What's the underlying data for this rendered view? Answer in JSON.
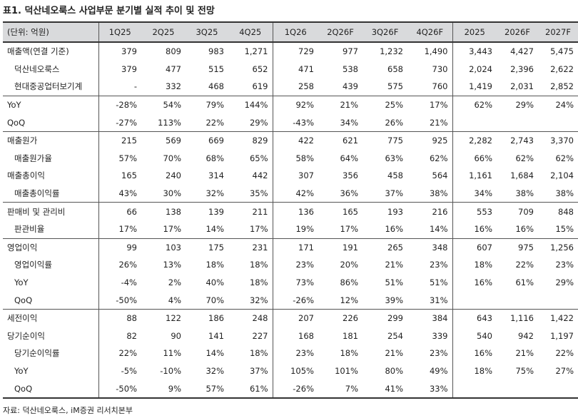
{
  "title": "표1. 덕산네오룩스 사업부문 분기별 실적 추이 및 전망",
  "source": "자료: 덕산네오룩스, iM증권 리서치본부",
  "header": [
    "(단위: 억원)",
    "1Q25",
    "2Q25",
    "3Q25",
    "4Q25",
    "1Q26",
    "2Q26F",
    "3Q26F",
    "4Q26F",
    "2025",
    "2026F",
    "2027F"
  ],
  "rows": [
    {
      "label": "매출액(연결 기준)",
      "values": [
        "379",
        "809",
        "983",
        "1,271",
        "729",
        "977",
        "1,232",
        "1,490",
        "3,443",
        "4,427",
        "5,475"
      ]
    },
    {
      "label": "덕산네오룩스",
      "values": [
        "379",
        "477",
        "515",
        "652",
        "471",
        "538",
        "658",
        "730",
        "2,024",
        "2,396",
        "2,622"
      ]
    },
    {
      "label": "현대중공업터보기계",
      "values": [
        "-",
        "332",
        "468",
        "619",
        "258",
        "439",
        "575",
        "760",
        "1,419",
        "2,031",
        "2,852"
      ]
    },
    {
      "label": "YoY",
      "values": [
        "-28%",
        "54%",
        "79%",
        "144%",
        "92%",
        "21%",
        "25%",
        "17%",
        "62%",
        "29%",
        "24%"
      ]
    },
    {
      "label": "QoQ",
      "values": [
        "-27%",
        "113%",
        "22%",
        "29%",
        "-43%",
        "34%",
        "26%",
        "21%",
        "",
        "",
        ""
      ]
    },
    {
      "label": "매출원가",
      "values": [
        "215",
        "569",
        "669",
        "829",
        "422",
        "621",
        "775",
        "925",
        "2,282",
        "2,743",
        "3,370"
      ]
    },
    {
      "label": "매출원가율",
      "values": [
        "57%",
        "70%",
        "68%",
        "65%",
        "58%",
        "64%",
        "63%",
        "62%",
        "66%",
        "62%",
        "62%"
      ]
    },
    {
      "label": "매출총이익",
      "values": [
        "165",
        "240",
        "314",
        "442",
        "307",
        "356",
        "458",
        "564",
        "1,161",
        "1,684",
        "2,104"
      ]
    },
    {
      "label": "매출총이익률",
      "values": [
        "43%",
        "30%",
        "32%",
        "35%",
        "42%",
        "36%",
        "37%",
        "38%",
        "34%",
        "38%",
        "38%"
      ]
    },
    {
      "label": "판매비 및 관리비",
      "values": [
        "66",
        "138",
        "139",
        "211",
        "136",
        "165",
        "193",
        "216",
        "553",
        "709",
        "848"
      ]
    },
    {
      "label": "판관비율",
      "values": [
        "17%",
        "17%",
        "14%",
        "17%",
        "19%",
        "17%",
        "16%",
        "14%",
        "16%",
        "16%",
        "15%"
      ]
    },
    {
      "label": "영업이익",
      "values": [
        "99",
        "103",
        "175",
        "231",
        "171",
        "191",
        "265",
        "348",
        "607",
        "975",
        "1,256"
      ]
    },
    {
      "label": "영업이익률",
      "values": [
        "26%",
        "13%",
        "18%",
        "18%",
        "23%",
        "20%",
        "21%",
        "23%",
        "18%",
        "22%",
        "23%"
      ]
    },
    {
      "label": "YoY",
      "values": [
        "-4%",
        "2%",
        "40%",
        "18%",
        "73%",
        "86%",
        "51%",
        "51%",
        "16%",
        "61%",
        "29%"
      ]
    },
    {
      "label": "QoQ",
      "values": [
        "-50%",
        "4%",
        "70%",
        "32%",
        "-26%",
        "12%",
        "39%",
        "31%",
        "",
        "",
        ""
      ]
    },
    {
      "label": "세전이익",
      "values": [
        "88",
        "122",
        "186",
        "248",
        "207",
        "226",
        "299",
        "384",
        "643",
        "1,116",
        "1,422"
      ]
    },
    {
      "label": "당기순이익",
      "values": [
        "82",
        "90",
        "141",
        "227",
        "168",
        "181",
        "254",
        "339",
        "540",
        "942",
        "1,197"
      ]
    },
    {
      "label": "당기순이익률",
      "values": [
        "22%",
        "11%",
        "14%",
        "18%",
        "23%",
        "18%",
        "21%",
        "23%",
        "16%",
        "21%",
        "22%"
      ]
    },
    {
      "label": "YoY",
      "values": [
        "-5%",
        "-10%",
        "32%",
        "37%",
        "105%",
        "101%",
        "80%",
        "49%",
        "18%",
        "75%",
        "27%"
      ]
    },
    {
      "label": "QoQ",
      "values": [
        "-50%",
        "9%",
        "57%",
        "61%",
        "-26%",
        "7%",
        "41%",
        "33%",
        "",
        "",
        ""
      ]
    }
  ]
}
